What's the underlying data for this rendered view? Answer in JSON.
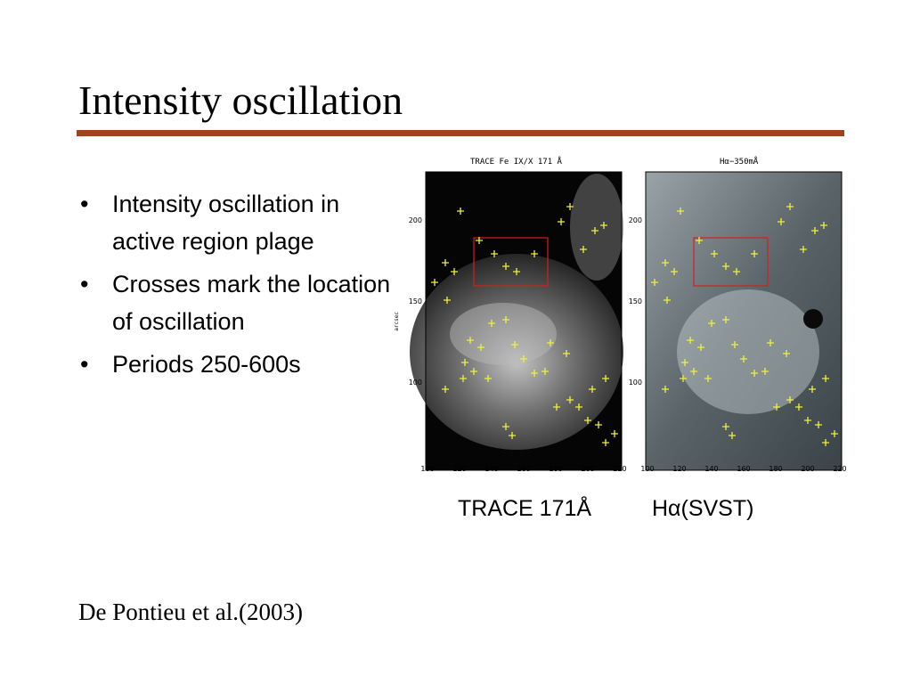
{
  "slide": {
    "title": "Intensity oscillation",
    "bullets": [
      "Intensity oscillation in active region plage",
      "Crosses mark the location of oscillation",
      "Periods 250-600s"
    ],
    "citation": "De Pontieu et al.(2003)"
  },
  "figure": {
    "left_panel_title": "TRACE Fe IX/X 171 Å",
    "right_panel_title": "Hα−350mÅ",
    "y_axis_label": "arcsec",
    "y_ticks": [
      "200",
      "150",
      "100"
    ],
    "x_ticks": [
      "100",
      "120",
      "140",
      "160",
      "180",
      "200",
      "220"
    ],
    "captions": [
      "TRACE 171Å",
      "Hα(SVST)"
    ],
    "marker_color": "#f0f040",
    "box_color": "#d02020"
  },
  "colors": {
    "rule": "#a0421c",
    "text": "#000000"
  }
}
